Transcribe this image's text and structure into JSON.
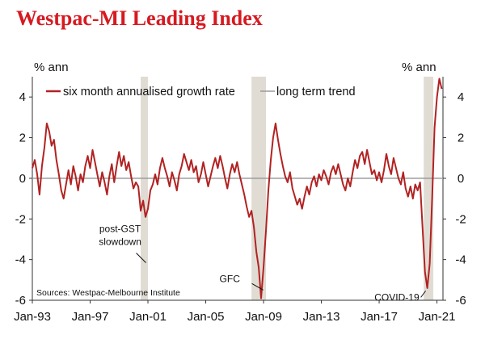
{
  "chart_data": {
    "type": "line",
    "title": "Westpac-MI Leading Index",
    "ylabel_left": "% ann",
    "ylabel_right": "% ann",
    "ylim": [
      -6,
      5
    ],
    "yticks": [
      4,
      2,
      0,
      -2,
      -4,
      -6
    ],
    "xlim": [
      "1993-01",
      "2021-06"
    ],
    "xticks": [
      "Jan-93",
      "Jan-97",
      "Jan-01",
      "Jan-05",
      "Jan-09",
      "Jan-13",
      "Jan-17",
      "Jan-21"
    ],
    "grid": false,
    "legend_placement": "top",
    "series": [
      {
        "name": "six month annualised growth rate",
        "color": "#b22222",
        "points": [
          [
            "1993-01",
            0.5
          ],
          [
            "1993-03",
            0.9
          ],
          [
            "1993-05",
            0.2
          ],
          [
            "1993-07",
            -0.8
          ],
          [
            "1993-09",
            0.6
          ],
          [
            "1993-11",
            1.5
          ],
          [
            "1994-01",
            2.7
          ],
          [
            "1994-03",
            2.3
          ],
          [
            "1994-05",
            1.6
          ],
          [
            "1994-07",
            1.9
          ],
          [
            "1994-09",
            0.9
          ],
          [
            "1994-11",
            0.2
          ],
          [
            "1995-01",
            -0.6
          ],
          [
            "1995-03",
            -1.0
          ],
          [
            "1995-05",
            -0.3
          ],
          [
            "1995-07",
            0.4
          ],
          [
            "1995-09",
            -0.3
          ],
          [
            "1995-11",
            0.6
          ],
          [
            "1996-01",
            0.1
          ],
          [
            "1996-03",
            -0.6
          ],
          [
            "1996-05",
            0.2
          ],
          [
            "1996-07",
            -0.2
          ],
          [
            "1996-09",
            0.6
          ],
          [
            "1996-11",
            1.1
          ],
          [
            "1997-01",
            0.5
          ],
          [
            "1997-03",
            1.4
          ],
          [
            "1997-05",
            0.8
          ],
          [
            "1997-07",
            0.2
          ],
          [
            "1997-09",
            -0.4
          ],
          [
            "1997-11",
            0.3
          ],
          [
            "1998-01",
            -0.2
          ],
          [
            "1998-03",
            -0.8
          ],
          [
            "1998-05",
            0.1
          ],
          [
            "1998-07",
            0.7
          ],
          [
            "1998-09",
            -0.2
          ],
          [
            "1998-11",
            0.6
          ],
          [
            "1999-01",
            1.3
          ],
          [
            "1999-03",
            0.6
          ],
          [
            "1999-05",
            1.1
          ],
          [
            "1999-07",
            0.4
          ],
          [
            "1999-09",
            0.8
          ],
          [
            "1999-11",
            0.1
          ],
          [
            "2000-01",
            -0.5
          ],
          [
            "2000-03",
            -0.2
          ],
          [
            "2000-05",
            -0.4
          ],
          [
            "2000-07",
            -1.6
          ],
          [
            "2000-09",
            -1.1
          ],
          [
            "2000-11",
            -1.9
          ],
          [
            "2001-01",
            -1.5
          ],
          [
            "2001-03",
            -0.6
          ],
          [
            "2001-05",
            -0.3
          ],
          [
            "2001-07",
            0.2
          ],
          [
            "2001-09",
            -0.3
          ],
          [
            "2001-11",
            0.5
          ],
          [
            "2002-01",
            1.0
          ],
          [
            "2002-03",
            0.5
          ],
          [
            "2002-05",
            0.1
          ],
          [
            "2002-07",
            -0.4
          ],
          [
            "2002-09",
            0.3
          ],
          [
            "2002-11",
            -0.1
          ],
          [
            "2003-01",
            -0.6
          ],
          [
            "2003-03",
            0.2
          ],
          [
            "2003-05",
            0.6
          ],
          [
            "2003-07",
            1.2
          ],
          [
            "2003-09",
            0.8
          ],
          [
            "2003-11",
            0.4
          ],
          [
            "2004-01",
            0.9
          ],
          [
            "2004-03",
            0.3
          ],
          [
            "2004-05",
            0.6
          ],
          [
            "2004-07",
            -0.2
          ],
          [
            "2004-09",
            0.2
          ],
          [
            "2004-11",
            0.8
          ],
          [
            "2005-01",
            0.2
          ],
          [
            "2005-03",
            -0.4
          ],
          [
            "2005-05",
            0.1
          ],
          [
            "2005-07",
            0.6
          ],
          [
            "2005-09",
            1.0
          ],
          [
            "2005-11",
            0.5
          ],
          [
            "2006-01",
            1.1
          ],
          [
            "2006-03",
            0.6
          ],
          [
            "2006-05",
            0.0
          ],
          [
            "2006-07",
            -0.5
          ],
          [
            "2006-09",
            0.2
          ],
          [
            "2006-11",
            0.7
          ],
          [
            "2007-01",
            0.3
          ],
          [
            "2007-03",
            0.8
          ],
          [
            "2007-05",
            0.2
          ],
          [
            "2007-07",
            -0.3
          ],
          [
            "2007-09",
            -0.8
          ],
          [
            "2007-11",
            -1.4
          ],
          [
            "2008-01",
            -1.9
          ],
          [
            "2008-03",
            -1.6
          ],
          [
            "2008-05",
            -2.4
          ],
          [
            "2008-07",
            -3.6
          ],
          [
            "2008-09",
            -4.4
          ],
          [
            "2008-11",
            -5.9
          ],
          [
            "2009-01",
            -4.4
          ],
          [
            "2009-03",
            -2.6
          ],
          [
            "2009-05",
            -0.6
          ],
          [
            "2009-07",
            0.9
          ],
          [
            "2009-09",
            2.0
          ],
          [
            "2009-11",
            2.7
          ],
          [
            "2010-01",
            1.9
          ],
          [
            "2010-03",
            1.2
          ],
          [
            "2010-05",
            0.6
          ],
          [
            "2010-07",
            0.1
          ],
          [
            "2010-09",
            -0.2
          ],
          [
            "2010-11",
            0.3
          ],
          [
            "2011-01",
            -0.5
          ],
          [
            "2011-03",
            -0.9
          ],
          [
            "2011-05",
            -1.3
          ],
          [
            "2011-07",
            -1.0
          ],
          [
            "2011-09",
            -1.5
          ],
          [
            "2011-11",
            -0.9
          ],
          [
            "2012-01",
            -0.4
          ],
          [
            "2012-03",
            -0.8
          ],
          [
            "2012-05",
            -0.2
          ],
          [
            "2012-07",
            0.1
          ],
          [
            "2012-09",
            -0.4
          ],
          [
            "2012-11",
            0.2
          ],
          [
            "2013-01",
            -0.1
          ],
          [
            "2013-03",
            0.4
          ],
          [
            "2013-05",
            0.1
          ],
          [
            "2013-07",
            -0.3
          ],
          [
            "2013-09",
            0.3
          ],
          [
            "2013-11",
            0.6
          ],
          [
            "2014-01",
            0.2
          ],
          [
            "2014-03",
            0.7
          ],
          [
            "2014-05",
            0.2
          ],
          [
            "2014-07",
            -0.3
          ],
          [
            "2014-09",
            -0.6
          ],
          [
            "2014-11",
            0.0
          ],
          [
            "2015-01",
            -0.4
          ],
          [
            "2015-03",
            0.3
          ],
          [
            "2015-05",
            0.9
          ],
          [
            "2015-07",
            0.5
          ],
          [
            "2015-09",
            1.1
          ],
          [
            "2015-11",
            1.3
          ],
          [
            "2016-01",
            0.7
          ],
          [
            "2016-03",
            1.4
          ],
          [
            "2016-05",
            0.8
          ],
          [
            "2016-07",
            0.2
          ],
          [
            "2016-09",
            0.4
          ],
          [
            "2016-11",
            -0.1
          ],
          [
            "2017-01",
            0.3
          ],
          [
            "2017-03",
            -0.2
          ],
          [
            "2017-05",
            0.4
          ],
          [
            "2017-07",
            1.2
          ],
          [
            "2017-09",
            0.6
          ],
          [
            "2017-11",
            0.2
          ],
          [
            "2018-01",
            1.0
          ],
          [
            "2018-03",
            0.5
          ],
          [
            "2018-05",
            0.0
          ],
          [
            "2018-07",
            -0.3
          ],
          [
            "2018-09",
            0.3
          ],
          [
            "2018-11",
            -0.5
          ],
          [
            "2019-01",
            -0.9
          ],
          [
            "2019-03",
            -0.4
          ],
          [
            "2019-05",
            -1.0
          ],
          [
            "2019-07",
            -0.3
          ],
          [
            "2019-09",
            -0.6
          ],
          [
            "2019-11",
            -0.2
          ],
          [
            "2020-01",
            -2.4
          ],
          [
            "2020-03",
            -4.6
          ],
          [
            "2020-05",
            -5.4
          ],
          [
            "2020-07",
            -4.2
          ],
          [
            "2020-09",
            -1.0
          ],
          [
            "2020-11",
            2.5
          ],
          [
            "2021-01",
            4.0
          ],
          [
            "2021-03",
            4.9
          ],
          [
            "2021-05",
            4.4
          ]
        ]
      },
      {
        "name": "long term trend",
        "color": "#9a9a9a",
        "points": [
          [
            "1993-01",
            0.0
          ],
          [
            "2021-06",
            0.0
          ]
        ]
      }
    ],
    "shaded_periods": [
      [
        "2000-07",
        "2001-01"
      ],
      [
        "2008-03",
        "2009-03"
      ],
      [
        "2020-02",
        "2020-10"
      ]
    ],
    "annotations": [
      {
        "text_lines": [
          "post-GST",
          "slowdown"
        ],
        "x": "2000-10",
        "y": -3.2
      },
      {
        "text": "GFC",
        "x": "2008-10",
        "y": -4.7
      },
      {
        "text": "COVID-19",
        "x": "2020-05",
        "y": -5.3
      }
    ],
    "source": "Sources: Westpac-Melbourne Institute"
  }
}
